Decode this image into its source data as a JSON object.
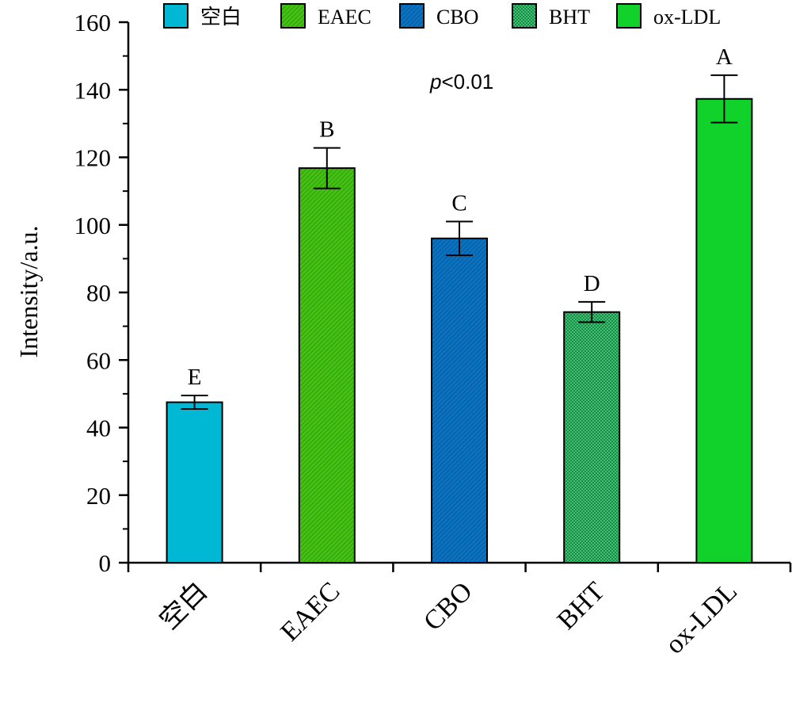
{
  "chart_data": {
    "type": "bar",
    "categories": [
      "空白",
      "EAEC",
      "CBO",
      "BHT",
      "ox-LDL"
    ],
    "values": [
      47.5,
      116.8,
      96.0,
      74.2,
      137.3
    ],
    "errors": [
      2.0,
      6.0,
      5.0,
      3.0,
      7.0
    ],
    "significance": [
      "E",
      "B",
      "C",
      "D",
      "A"
    ],
    "colors": [
      "#00b8d4",
      "#44c214",
      "#0a72c0",
      "#30b060",
      "#10d22a"
    ],
    "patterns": [
      "solid",
      "hatch",
      "hatch",
      "grid",
      "solid"
    ],
    "legend": [
      "空白",
      "EAEC",
      "CBO",
      "BHT",
      "ox-LDL"
    ],
    "legend_position": "top",
    "annotation_prefix": "p",
    "annotation_suffix": "<0.01",
    "ylabel": "Intensity/a.u.",
    "xlabel": "",
    "ylim": [
      0,
      160
    ],
    "yticks": [
      0,
      20,
      40,
      60,
      80,
      100,
      120,
      140,
      160
    ],
    "grid": false
  }
}
